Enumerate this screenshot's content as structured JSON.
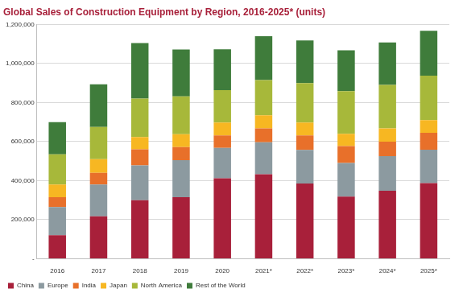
{
  "chart_data": {
    "type": "bar",
    "title": "Global Sales of Construction Equipment by Region, 2016-2025* (units)",
    "categories": [
      "2016",
      "2017",
      "2018",
      "2019",
      "2020",
      "2021*",
      "2022*",
      "2023*",
      "2024*",
      "2025*"
    ],
    "series": [
      {
        "name": "China",
        "color": "#a8203a",
        "values": [
          120000,
          217000,
          300000,
          315000,
          412000,
          433000,
          385000,
          318000,
          348000,
          387000
        ]
      },
      {
        "name": "Europe",
        "color": "#8c9aa0",
        "values": [
          145000,
          163000,
          178000,
          190000,
          156000,
          163000,
          172000,
          172000,
          177000,
          171000
        ]
      },
      {
        "name": "India",
        "color": "#e8702a",
        "values": [
          50000,
          60000,
          82000,
          67000,
          64000,
          72000,
          75000,
          87000,
          75000,
          87000
        ]
      },
      {
        "name": "Japan",
        "color": "#f7b722",
        "values": [
          65000,
          70000,
          63000,
          66000,
          66000,
          67000,
          66000,
          63000,
          68000,
          65000
        ]
      },
      {
        "name": "North America",
        "color": "#a7b83a",
        "values": [
          155000,
          165000,
          197000,
          194000,
          165000,
          180000,
          202000,
          218000,
          222000,
          228000
        ]
      },
      {
        "name": "Rest of the World",
        "color": "#3f7c3b",
        "values": [
          165000,
          218000,
          285000,
          240000,
          210000,
          225000,
          218000,
          210000,
          218000,
          230000
        ]
      }
    ],
    "ylim": [
      0,
      1200000
    ],
    "yticks": [
      {
        "value": 0,
        "label": "-"
      },
      {
        "value": 200000,
        "label": "200,000"
      },
      {
        "value": 400000,
        "label": "400,000"
      },
      {
        "value": 600000,
        "label": "600,000"
      },
      {
        "value": 800000,
        "label": "800,000"
      },
      {
        "value": 1000000,
        "label": "1,000,000"
      },
      {
        "value": 1200000,
        "label": "1,200,000"
      }
    ],
    "stacked": true,
    "grid": true,
    "legend": "bottom"
  }
}
